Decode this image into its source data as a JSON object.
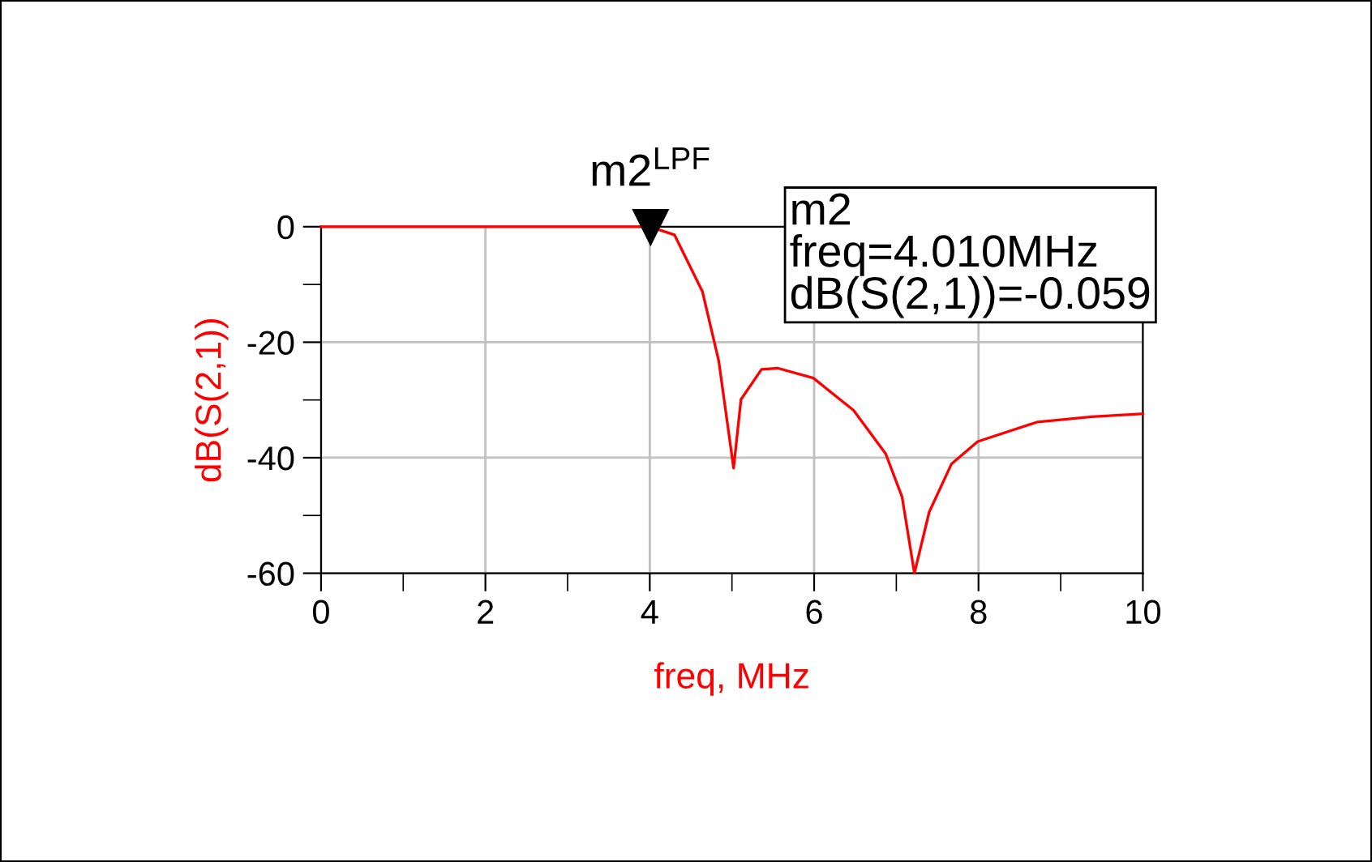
{
  "chart_data": {
    "type": "line",
    "xlabel": "freq, MHz",
    "ylabel": "dB(S(2,1))",
    "xlim": [
      0,
      10
    ],
    "ylim": [
      -60,
      0
    ],
    "xticks": [
      0,
      {
        "value": 1,
        "label": null
      },
      2,
      {
        "value": 3,
        "label": null
      },
      4,
      {
        "value": 5,
        "label": null
      },
      6,
      {
        "value": 7,
        "label": null
      },
      8,
      {
        "value": 9,
        "label": null
      },
      10
    ],
    "yticks": [
      -60,
      {
        "value": -50,
        "label": null
      },
      -40,
      {
        "value": -30,
        "label": null
      },
      -20,
      {
        "value": -10,
        "label": null
      },
      0
    ],
    "grid": true,
    "marker": "none",
    "line_style": "solid",
    "series": [
      {
        "color": "#ff0000",
        "x": [
          0,
          1,
          2,
          3,
          4.0,
          4.3,
          4.64,
          4.84,
          5.02,
          5.11,
          5.36,
          5.56,
          5.99,
          6.48,
          6.87,
          7.07,
          7.22,
          7.4,
          7.67,
          7.99,
          8.72,
          9.38,
          10
        ],
        "values": [
          0,
          0,
          0,
          0,
          0,
          -1.4,
          -11.2,
          -23.3,
          -41.8,
          -29.9,
          -24.7,
          -24.5,
          -26.2,
          -31.8,
          -39.3,
          -46.8,
          -60,
          -49.4,
          -41.1,
          -37.2,
          -33.8,
          -32.9,
          -32.4
        ]
      }
    ],
    "annotations": [
      {
        "text": "m2$^{LPF}$",
        "x": 4.01,
        "y": -0.059
      },
      "m2\nfreq=4.010MHz\ndB(S(2,1))=-0.059"
    ]
  }
}
